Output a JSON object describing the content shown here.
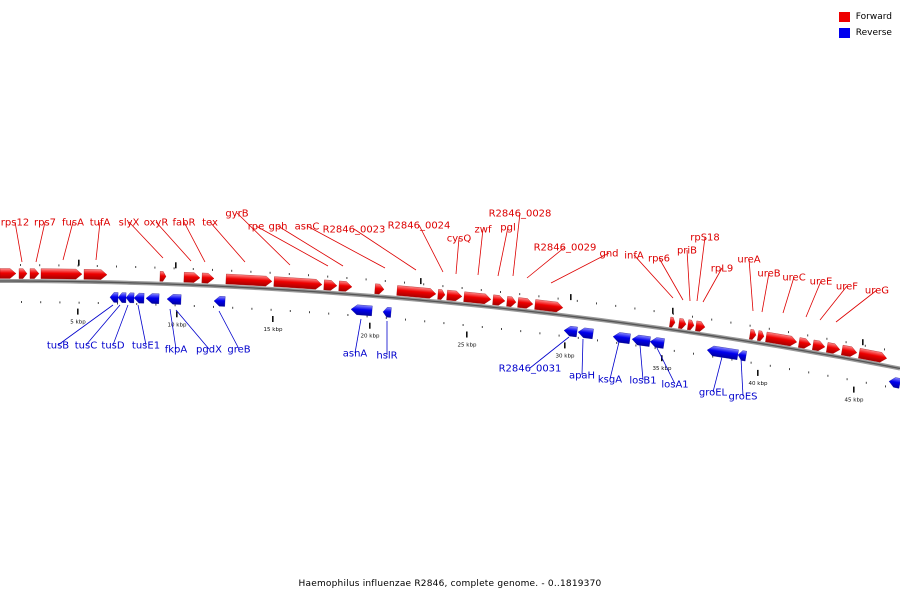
{
  "legend": {
    "forward_label": "Forward",
    "reverse_label": "Reverse",
    "forward_color": "#ee0000",
    "reverse_color": "#0000ee"
  },
  "caption": "Haemophilus influenzae R2846, complete genome. - 0..1819370",
  "scale": {
    "unit": "kbp",
    "ticks": [
      5,
      10,
      15,
      20,
      25,
      30,
      35,
      40,
      45
    ]
  },
  "forward_genes": [
    "rps12",
    "rps7",
    "fusA",
    "tufA",
    "slyX",
    "oxyR",
    "fabR",
    "tex",
    "gyrB",
    "rpe",
    "gph",
    "asnC",
    "R2846_0023",
    "R2846_0024",
    "cysQ",
    "zwf",
    "pgl",
    "R2846_0028",
    "R2846_0029",
    "gnd",
    "infA",
    "rps6",
    "priB",
    "rpS18",
    "rpL9",
    "ureA",
    "ureB",
    "ureC",
    "ureE",
    "ureF",
    "ureG"
  ],
  "reverse_genes": [
    "tusB",
    "tusC",
    "tusD",
    "tusE1",
    "fkpA",
    "pgdX",
    "greB",
    "asnA",
    "hslR",
    "R2846_0031",
    "apaH",
    "ksgA",
    "losB1",
    "losA1",
    "groEL",
    "groES"
  ]
}
